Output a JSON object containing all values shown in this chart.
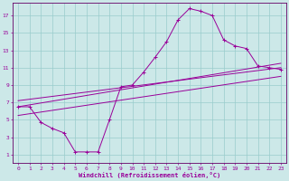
{
  "bg_color": "#cce8e8",
  "grid_color": "#99cccc",
  "line_color": "#990099",
  "spine_color": "#660066",
  "marker": "+",
  "xlabel": "Windchill (Refroidissement éolien,°C)",
  "xlim": [
    -0.5,
    23.5
  ],
  "ylim": [
    0,
    18.5
  ],
  "xticks": [
    0,
    1,
    2,
    3,
    4,
    5,
    6,
    7,
    8,
    9,
    10,
    11,
    12,
    13,
    14,
    15,
    16,
    17,
    18,
    19,
    20,
    21,
    22,
    23
  ],
  "yticks": [
    1,
    3,
    5,
    7,
    9,
    11,
    13,
    15,
    17
  ],
  "main_series": {
    "x": [
      0,
      1,
      2,
      3,
      4,
      5,
      6,
      7,
      8,
      9,
      10,
      11,
      12,
      13,
      14,
      15,
      16,
      17,
      18,
      19,
      20,
      21,
      22,
      23
    ],
    "y": [
      6.5,
      6.5,
      4.7,
      4.0,
      3.5,
      1.3,
      1.3,
      1.3,
      5.0,
      8.8,
      9.0,
      10.5,
      12.2,
      14.0,
      16.5,
      17.8,
      17.5,
      17.0,
      14.2,
      13.5,
      13.2,
      11.2,
      11.0,
      10.8
    ]
  },
  "straight_lines": [
    {
      "x": [
        0,
        23
      ],
      "y": [
        7.2,
        11.0
      ]
    },
    {
      "x": [
        0,
        23
      ],
      "y": [
        6.5,
        11.5
      ]
    },
    {
      "x": [
        0,
        23
      ],
      "y": [
        5.5,
        10.0
      ]
    }
  ]
}
